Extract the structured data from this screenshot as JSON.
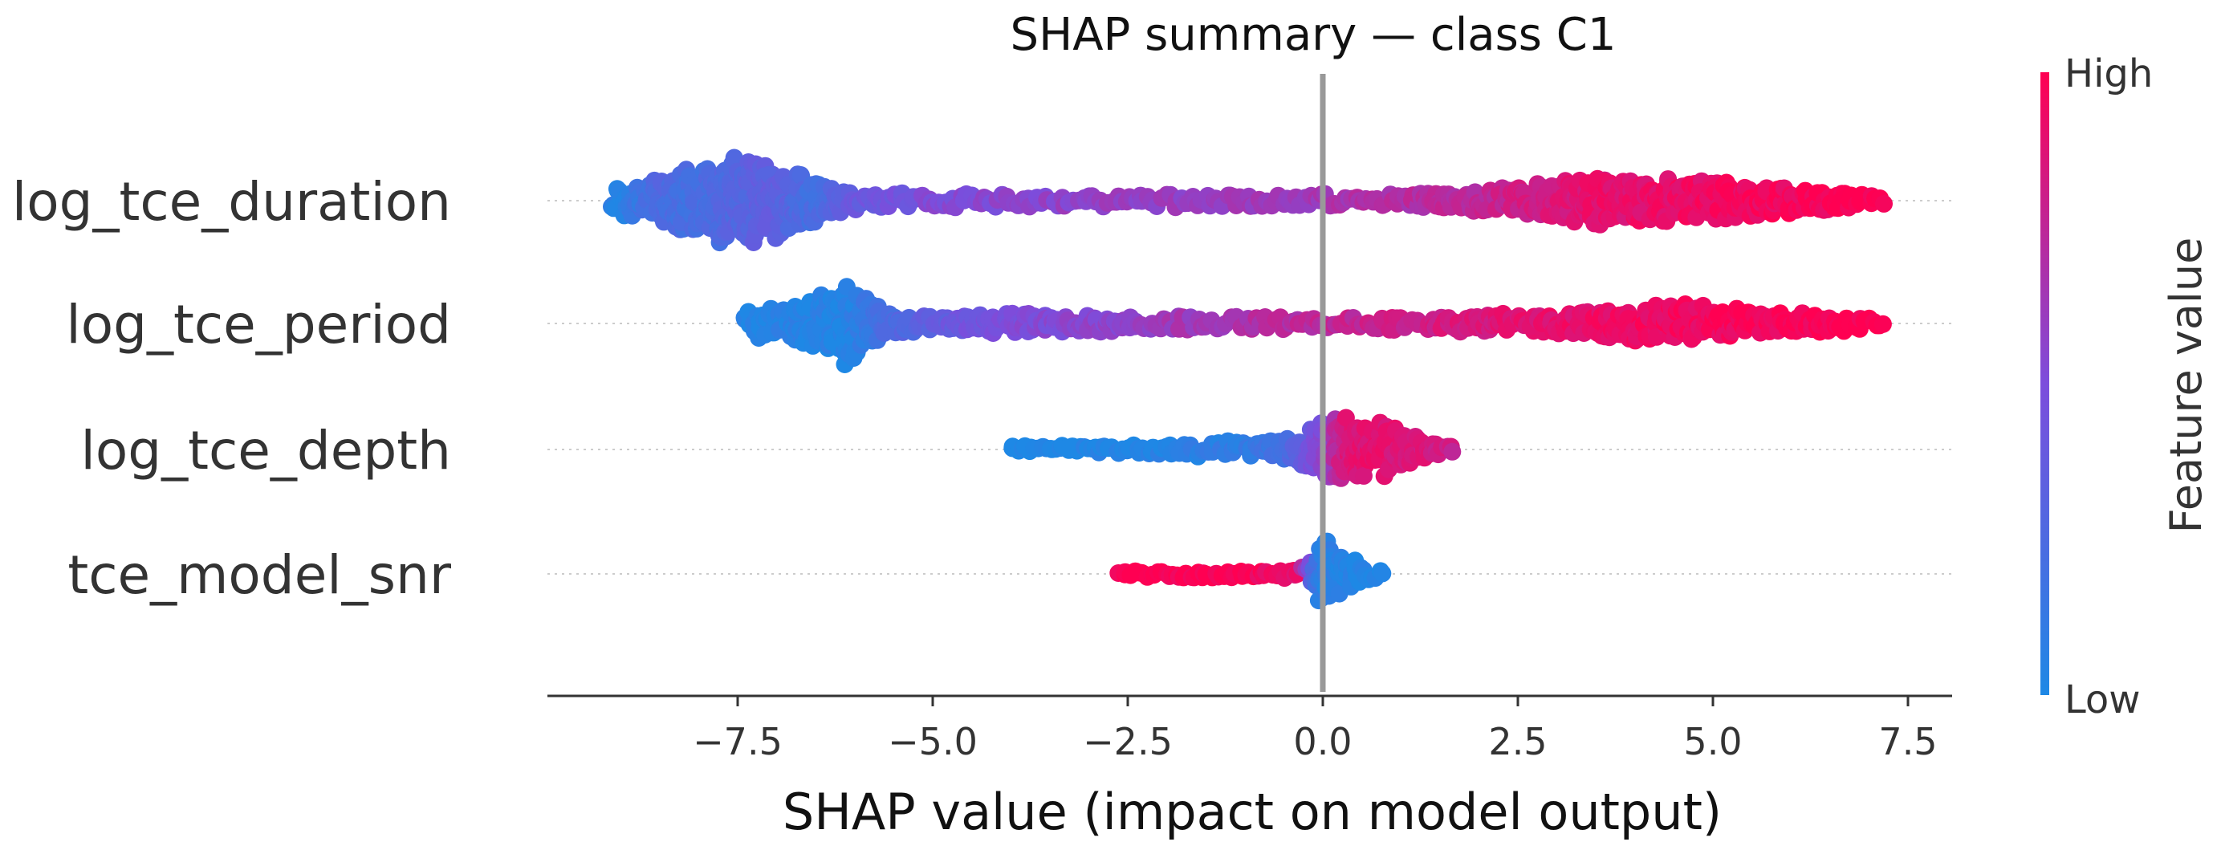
{
  "chart_data": {
    "type": "scatter",
    "subtype": "shap-beeswarm",
    "title": "SHAP summary — class C1",
    "xlabel": "SHAP value (impact on model output)",
    "ylabel": "",
    "xlim": [
      -9.6,
      8.4
    ],
    "xticks": [
      -7.5,
      -5.0,
      -2.5,
      0.0,
      2.5,
      5.0,
      7.5
    ],
    "xtick_labels": [
      "−7.5",
      "−5.0",
      "−2.5",
      "0.0",
      "2.5",
      "5.0",
      "7.5"
    ],
    "zero_line": 0.0,
    "features": [
      {
        "name": "log_tce_duration",
        "range": [
          -9.1,
          7.2
        ],
        "points": [
          {
            "x": -9.0,
            "spread": 0.2,
            "color": 0.05
          },
          {
            "x": -8.5,
            "spread": 0.28,
            "color": 0.25
          },
          {
            "x": -8.0,
            "spread": 0.4,
            "color": 0.2
          },
          {
            "x": -7.5,
            "spread": 0.5,
            "color": 0.3
          },
          {
            "x": -7.0,
            "spread": 0.42,
            "color": 0.35
          },
          {
            "x": -6.5,
            "spread": 0.25,
            "color": 0.2
          },
          {
            "x": -6.0,
            "spread": 0.1,
            "color": 0.4
          },
          {
            "x": -5.0,
            "spread": 0.09,
            "color": 0.5
          },
          {
            "x": -4.0,
            "spread": 0.08,
            "color": 0.55
          },
          {
            "x": -3.0,
            "spread": 0.07,
            "color": 0.58
          },
          {
            "x": -2.0,
            "spread": 0.08,
            "color": 0.6
          },
          {
            "x": -1.0,
            "spread": 0.08,
            "color": 0.62
          },
          {
            "x": 0.0,
            "spread": 0.09,
            "color": 0.65
          },
          {
            "x": 1.0,
            "spread": 0.09,
            "color": 0.7
          },
          {
            "x": 2.0,
            "spread": 0.12,
            "color": 0.75
          },
          {
            "x": 3.0,
            "spread": 0.22,
            "color": 0.85
          },
          {
            "x": 3.5,
            "spread": 0.28,
            "color": 0.9
          },
          {
            "x": 4.5,
            "spread": 0.25,
            "color": 0.92
          },
          {
            "x": 5.5,
            "spread": 0.2,
            "color": 0.95
          },
          {
            "x": 6.5,
            "spread": 0.12,
            "color": 0.97
          },
          {
            "x": 7.2,
            "spread": 0.06,
            "color": 1.0
          }
        ]
      },
      {
        "name": "log_tce_period",
        "range": [
          -7.4,
          7.2
        ],
        "points": [
          {
            "x": -7.3,
            "spread": 0.15,
            "color": 0.02
          },
          {
            "x": -6.8,
            "spread": 0.22,
            "color": 0.05
          },
          {
            "x": -6.1,
            "spread": 0.45,
            "color": 0.03
          },
          {
            "x": -5.5,
            "spread": 0.12,
            "color": 0.25
          },
          {
            "x": -4.5,
            "spread": 0.1,
            "color": 0.45
          },
          {
            "x": -3.8,
            "spread": 0.13,
            "color": 0.5
          },
          {
            "x": -3.0,
            "spread": 0.1,
            "color": 0.55
          },
          {
            "x": -2.0,
            "spread": 0.09,
            "color": 0.62
          },
          {
            "x": -1.0,
            "spread": 0.09,
            "color": 0.68
          },
          {
            "x": 0.0,
            "spread": 0.09,
            "color": 0.75
          },
          {
            "x": 1.0,
            "spread": 0.09,
            "color": 0.8
          },
          {
            "x": 2.0,
            "spread": 0.1,
            "color": 0.85
          },
          {
            "x": 3.0,
            "spread": 0.13,
            "color": 0.9
          },
          {
            "x": 4.5,
            "spread": 0.22,
            "color": 0.95
          },
          {
            "x": 5.5,
            "spread": 0.15,
            "color": 0.97
          },
          {
            "x": 6.5,
            "spread": 0.1,
            "color": 0.98
          },
          {
            "x": 7.2,
            "spread": 0.06,
            "color": 1.0
          }
        ]
      },
      {
        "name": "log_tce_depth",
        "range": [
          -4.0,
          1.7
        ],
        "points": [
          {
            "x": -4.0,
            "spread": 0.04,
            "color": 0.0
          },
          {
            "x": -3.0,
            "spread": 0.05,
            "color": 0.02
          },
          {
            "x": -2.0,
            "spread": 0.07,
            "color": 0.05
          },
          {
            "x": -1.0,
            "spread": 0.1,
            "color": 0.1
          },
          {
            "x": -0.5,
            "spread": 0.15,
            "color": 0.2
          },
          {
            "x": 0.0,
            "spread": 0.35,
            "color": 0.55
          },
          {
            "x": 0.3,
            "spread": 0.42,
            "color": 0.85
          },
          {
            "x": 0.7,
            "spread": 0.3,
            "color": 0.9
          },
          {
            "x": 1.2,
            "spread": 0.15,
            "color": 0.85
          },
          {
            "x": 1.7,
            "spread": 0.05,
            "color": 0.8
          }
        ]
      },
      {
        "name": "tce_model_snr",
        "range": [
          -2.6,
          0.8
        ],
        "points": [
          {
            "x": -2.6,
            "spread": 0.04,
            "color": 1.0
          },
          {
            "x": -2.0,
            "spread": 0.05,
            "color": 1.0
          },
          {
            "x": -1.0,
            "spread": 0.05,
            "color": 0.98
          },
          {
            "x": -0.3,
            "spread": 0.06,
            "color": 0.9
          },
          {
            "x": -0.1,
            "spread": 0.2,
            "color": 0.2
          },
          {
            "x": 0.0,
            "spread": 0.4,
            "color": 0.05
          },
          {
            "x": 0.2,
            "spread": 0.3,
            "color": 0.03
          },
          {
            "x": 0.5,
            "spread": 0.1,
            "color": 0.02
          },
          {
            "x": 0.8,
            "spread": 0.05,
            "color": 0.02
          }
        ]
      }
    ],
    "colorbar": {
      "title": "Feature value",
      "high_label": "High",
      "low_label": "Low",
      "low_color": "#1e88e5",
      "mid_color": "#7c4ddc",
      "high_color": "#ff0052"
    }
  }
}
